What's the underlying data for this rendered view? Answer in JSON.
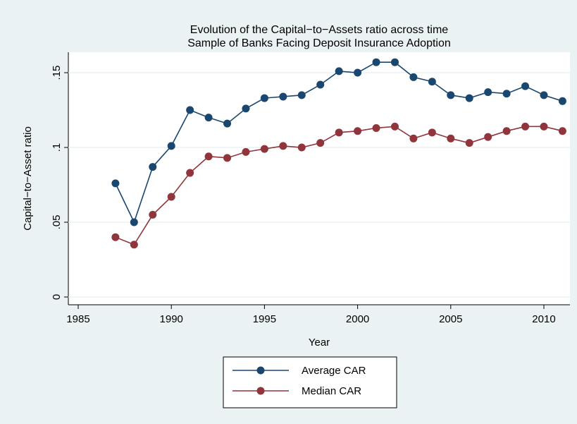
{
  "chart_data": {
    "type": "line",
    "title": "Evolution of the Capital−to−Assets ratio across time",
    "subtitle": "Sample of Banks Facing Deposit Insurance Adoption",
    "x_label": "Year",
    "y_label": "Capital−to−Asset ratio",
    "x": [
      1987,
      1988,
      1989,
      1990,
      1991,
      1992,
      1993,
      1994,
      1995,
      1996,
      1997,
      1998,
      1999,
      2000,
      2001,
      2002,
      2003,
      2004,
      2005,
      2006,
      2007,
      2008,
      2009,
      2010,
      2011
    ],
    "series": [
      {
        "name": "Average CAR",
        "color": "#1a476f",
        "values": [
          0.076,
          0.05,
          0.087,
          0.101,
          0.125,
          0.12,
          0.116,
          0.126,
          0.133,
          0.134,
          0.135,
          0.142,
          0.151,
          0.15,
          0.157,
          0.157,
          0.147,
          0.144,
          0.135,
          0.133,
          0.137,
          0.136,
          0.141,
          0.135,
          0.131
        ]
      },
      {
        "name": "Median CAR",
        "color": "#90353b",
        "values": [
          0.04,
          0.035,
          0.055,
          0.067,
          0.083,
          0.094,
          0.093,
          0.097,
          0.099,
          0.101,
          0.1,
          0.103,
          0.11,
          0.111,
          0.113,
          0.114,
          0.106,
          0.11,
          0.106,
          0.103,
          0.107,
          0.111,
          0.114,
          0.114,
          0.111
        ]
      }
    ],
    "xlim": [
      1984.47,
      2011.4
    ],
    "ylim": [
      -0.0052,
      0.1637
    ],
    "xticks": [
      1985,
      1990,
      1995,
      2000,
      2005,
      2010
    ],
    "yticks": [
      0,
      {
        "value": 0.05,
        "label": ".05"
      },
      {
        "value": 0.1,
        "label": ".1"
      },
      {
        "value": 0.15,
        "label": ".15"
      }
    ],
    "grid": true,
    "legend": "bottom"
  }
}
